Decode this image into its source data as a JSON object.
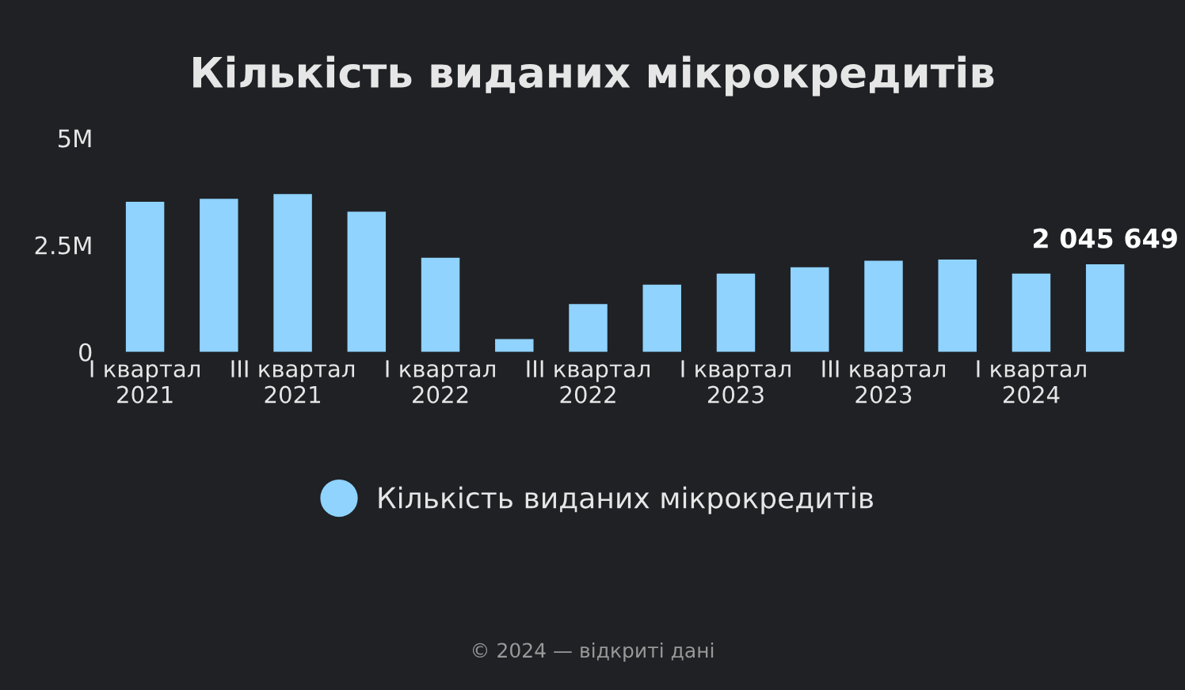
{
  "chart_data": {
    "type": "bar",
    "title": "Кількість виданих мікрокредитів",
    "categories": [
      "I квартал\n2021",
      null,
      "III квартал\n2021",
      null,
      "I квартал\n2022",
      null,
      "III квартал\n2022",
      null,
      "I квартал\n2023",
      null,
      "III квартал\n2023",
      null,
      "I квартал\n2024",
      null
    ],
    "series": [
      {
        "name": "Кількість виданих мікрокредитів",
        "color": "#8fd3fe",
        "values": [
          3510000,
          3580000,
          3690000,
          3280000,
          2200000,
          300000,
          1120000,
          1570000,
          1830000,
          1980000,
          2130000,
          2160000,
          1830000,
          2045649
        ],
        "value_labels": [
          null,
          null,
          null,
          null,
          null,
          null,
          null,
          null,
          null,
          null,
          null,
          null,
          null,
          "2 045 649"
        ]
      }
    ],
    "ylim": [
      0,
      5000000
    ],
    "yticks": [
      0,
      {
        "value": 2500000,
        "label": "2.5M"
      },
      {
        "value": 5000000,
        "label": "5M"
      }
    ],
    "grid": false,
    "legend": "bottom",
    "marker": "circle",
    "annotations": [
      "© 2024 — відкриті дані"
    ]
  }
}
